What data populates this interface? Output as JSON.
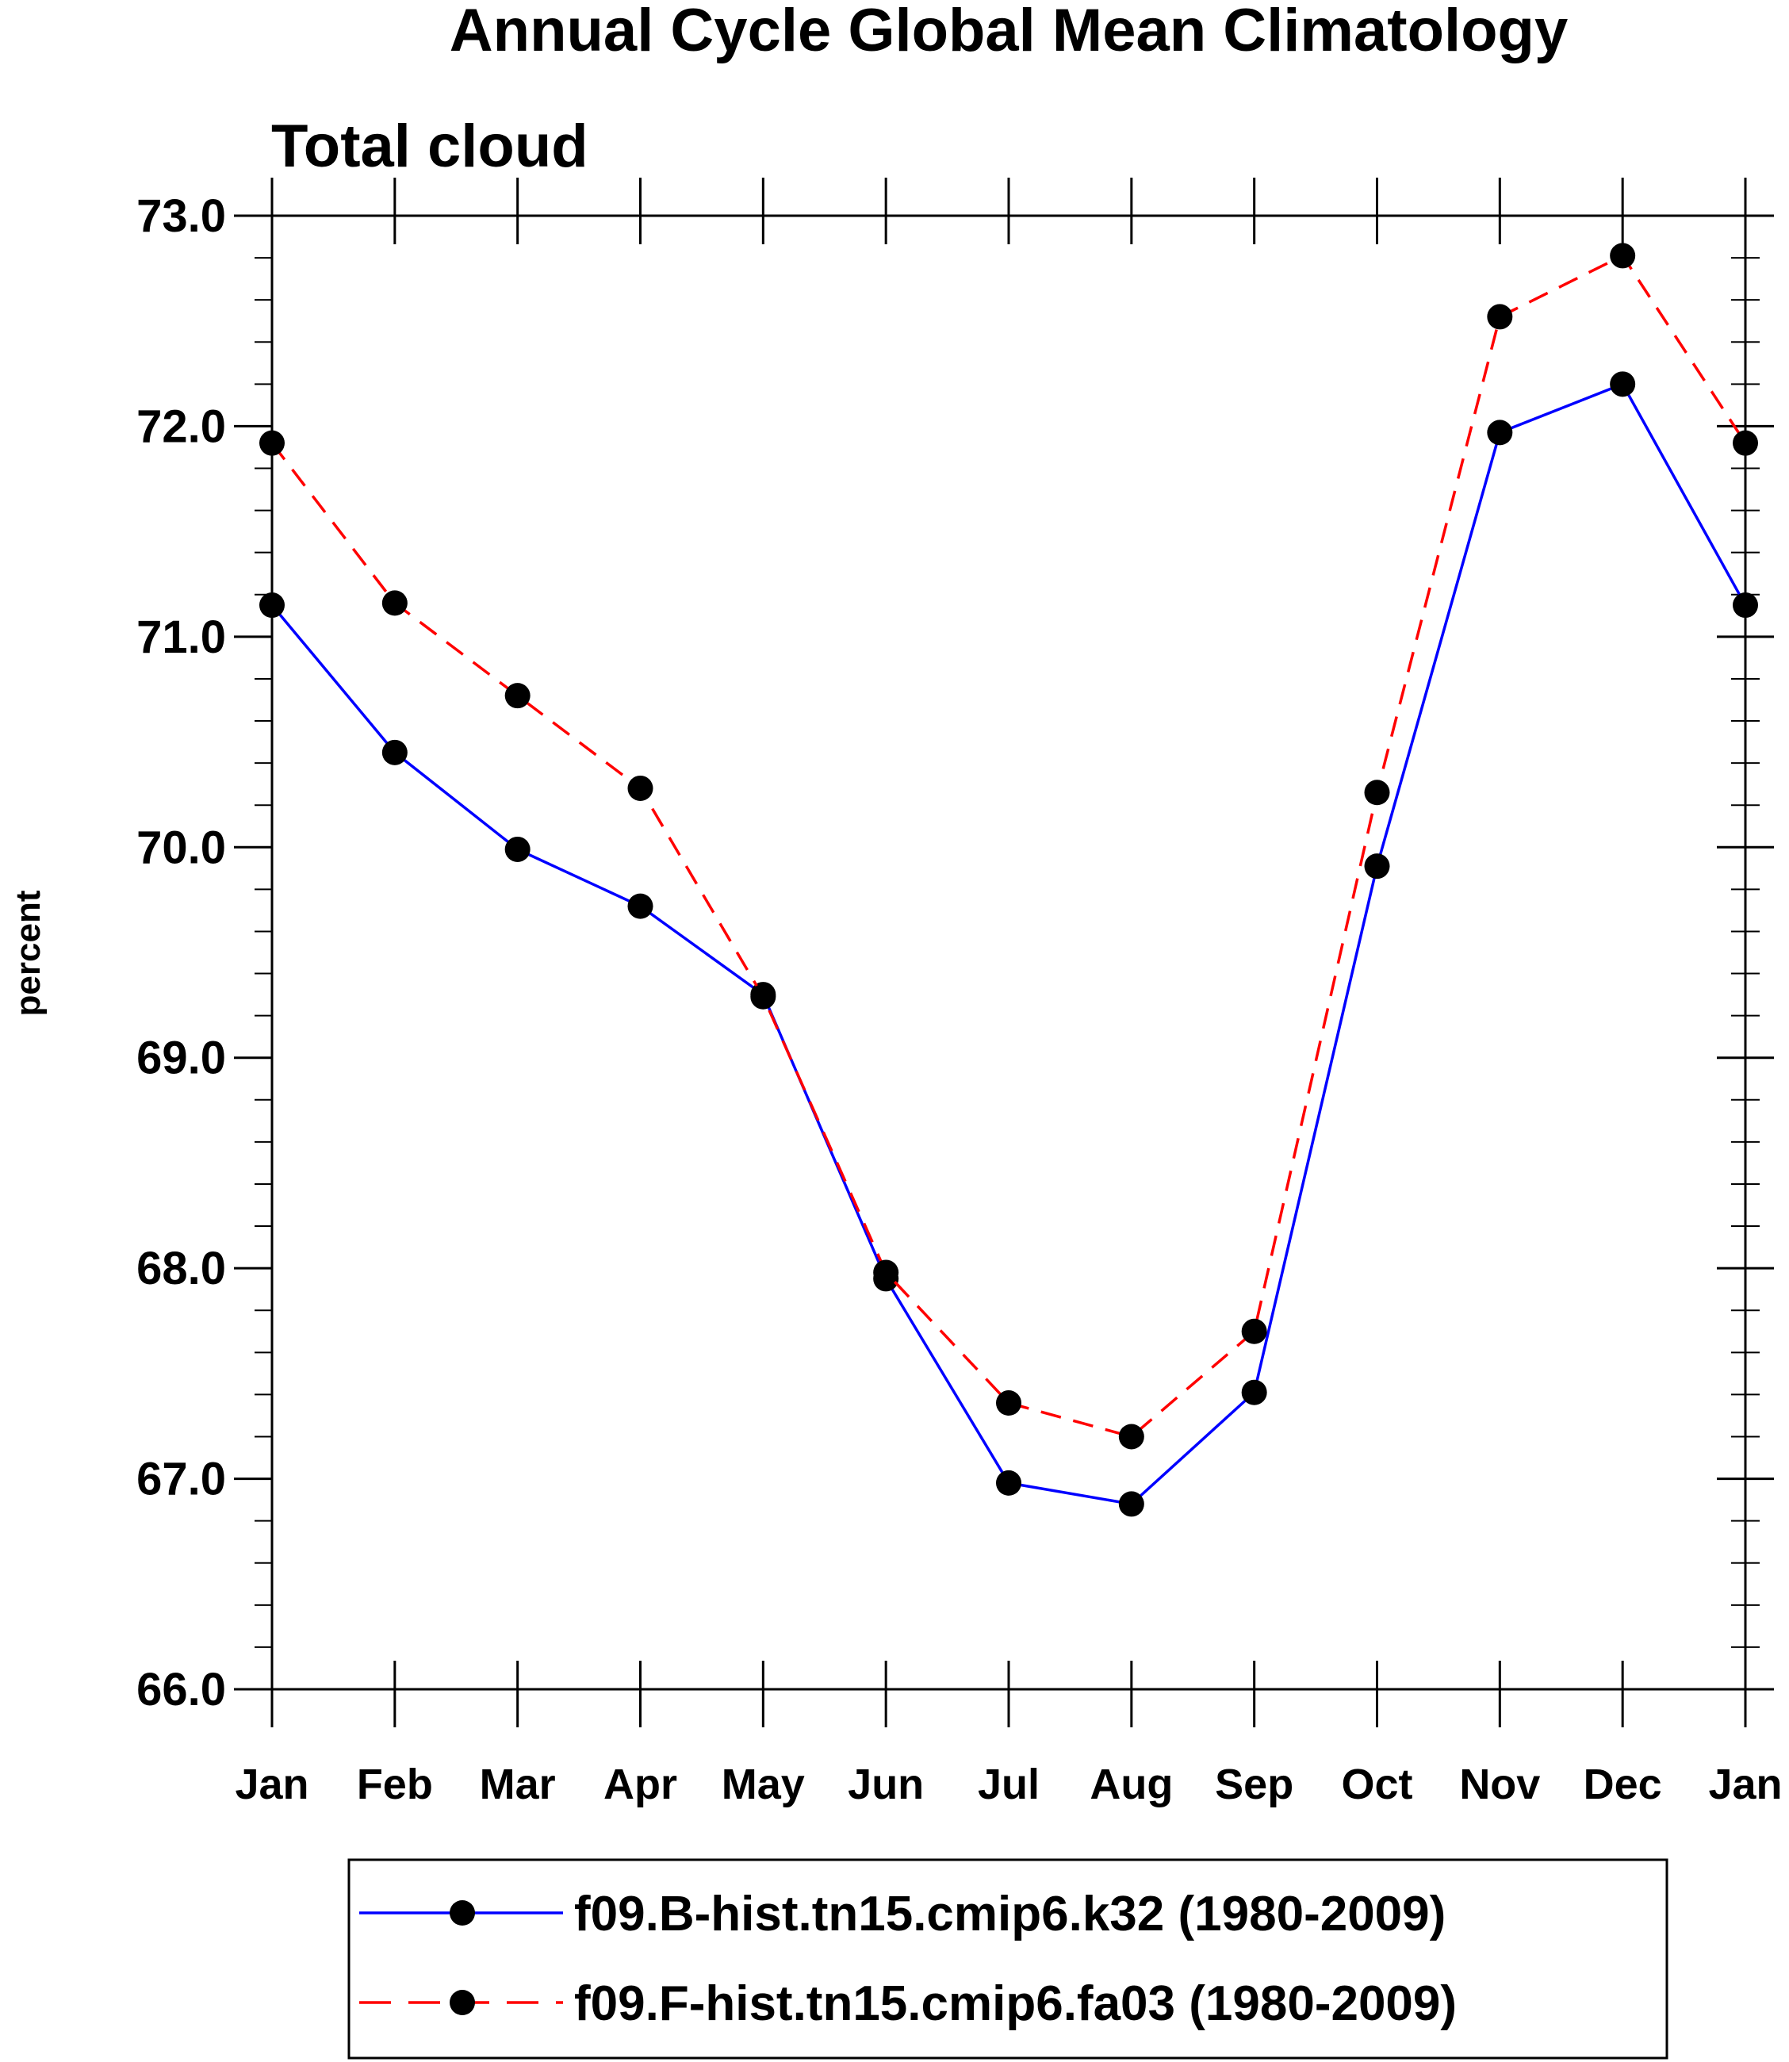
{
  "chart_data": {
    "type": "line",
    "title": "Annual Cycle Global Mean Climatology",
    "subtitle": "Total cloud",
    "xlabel": "",
    "ylabel": "percent",
    "ylim": [
      66.0,
      73.0
    ],
    "y_ticks": [
      "66.0",
      "67.0",
      "68.0",
      "69.0",
      "70.0",
      "71.0",
      "72.0",
      "73.0"
    ],
    "y_minor_step": 0.2,
    "categories": [
      "Jan",
      "Feb",
      "Mar",
      "Apr",
      "May",
      "Jun",
      "Jul",
      "Aug",
      "Sep",
      "Oct",
      "Nov",
      "Dec",
      "Jan"
    ],
    "grid": false,
    "legend_position": "bottom",
    "series": [
      {
        "name": "f09.B-hist.tn15.cmip6.k32 (1980-2009)",
        "color": "#0000ff",
        "style": "solid",
        "marker": "circle",
        "values": [
          71.15,
          70.45,
          69.99,
          69.72,
          69.3,
          67.95,
          66.98,
          66.88,
          67.41,
          69.91,
          71.97,
          72.2,
          71.15
        ]
      },
      {
        "name": "f09.F-hist.tn15.cmip6.fa03 (1980-2009)",
        "color": "#ff0000",
        "style": "dashed",
        "marker": "circle",
        "values": [
          71.92,
          71.16,
          70.72,
          70.28,
          69.29,
          67.98,
          67.36,
          67.2,
          67.7,
          70.26,
          72.52,
          72.81,
          71.92
        ]
      }
    ]
  }
}
